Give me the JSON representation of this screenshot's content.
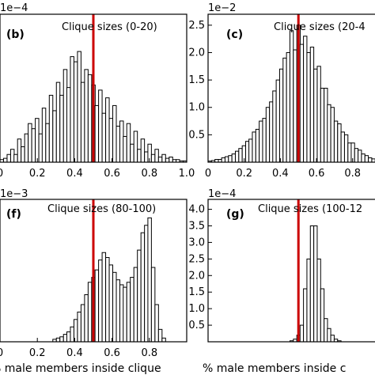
{
  "panels": [
    {
      "letter": "(b)",
      "label": "Clique sizes (0-20)",
      "exponent": "1e−4"
    },
    {
      "letter": "(c)",
      "label": "Clique sizes (20-4",
      "exponent": "1e−2"
    },
    {
      "letter": "(f)",
      "label": "Clique sizes (80-100)",
      "exponent": "1e−3"
    },
    {
      "letter": "(g)",
      "label": "Clique sizes (100-12",
      "exponent": "1e−4"
    }
  ],
  "xlabels": [
    "% male members inside clique",
    "% male members inside c"
  ],
  "colors": {
    "marker_line": "#cc0000",
    "bar_fill": "#ffffff",
    "bar_edge": "#000000"
  },
  "chart_data": [
    {
      "type": "bar",
      "panel": "b",
      "title": "Clique sizes (0-20)",
      "xlim": [
        0,
        1.0
      ],
      "xticks": [
        "0",
        "0.2",
        "0.4",
        "0.6",
        "0.8",
        "1.0"
      ],
      "yticks": [],
      "marker_x": 0.5,
      "bin_width": 0.0189,
      "x": [
        0.0,
        0.019,
        0.038,
        0.057,
        0.075,
        0.094,
        0.113,
        0.132,
        0.151,
        0.17,
        0.189,
        0.208,
        0.226,
        0.245,
        0.264,
        0.283,
        0.302,
        0.321,
        0.34,
        0.358,
        0.377,
        0.396,
        0.415,
        0.434,
        0.453,
        0.472,
        0.491,
        0.509,
        0.528,
        0.547,
        0.566,
        0.585,
        0.604,
        0.623,
        0.642,
        0.66,
        0.679,
        0.698,
        0.717,
        0.736,
        0.755,
        0.774,
        0.792,
        0.811,
        0.83,
        0.849,
        0.868,
        0.887,
        0.906,
        0.925,
        0.943,
        0.962,
        0.981
      ],
      "y": [
        0.02,
        0.03,
        0.06,
        0.1,
        0.06,
        0.18,
        0.12,
        0.22,
        0.3,
        0.26,
        0.34,
        0.22,
        0.42,
        0.3,
        0.52,
        0.4,
        0.62,
        0.52,
        0.72,
        0.58,
        0.82,
        0.78,
        0.86,
        0.62,
        0.72,
        0.68,
        0.6,
        0.44,
        0.56,
        0.38,
        0.5,
        0.34,
        0.44,
        0.28,
        0.32,
        0.2,
        0.3,
        0.14,
        0.24,
        0.1,
        0.18,
        0.08,
        0.14,
        0.06,
        0.1,
        0.04,
        0.06,
        0.03,
        0.04,
        0.02,
        0.02,
        0.01,
        0.01
      ]
    },
    {
      "type": "bar",
      "panel": "c",
      "title": "Clique sizes (20-4",
      "xlim": [
        0,
        0.95
      ],
      "xticks": [
        "0",
        "0.2",
        "0.4",
        "0.6",
        "0.8"
      ],
      "ylim": [
        0,
        2.7
      ],
      "yticks": [
        "0.5",
        "1.0",
        "1.5",
        "2.0",
        "2.5"
      ],
      "marker_x": 0.5,
      "bin_width": 0.0189,
      "x": [
        0.0,
        0.019,
        0.038,
        0.057,
        0.075,
        0.094,
        0.113,
        0.132,
        0.151,
        0.17,
        0.189,
        0.208,
        0.226,
        0.245,
        0.264,
        0.283,
        0.302,
        0.321,
        0.34,
        0.358,
        0.377,
        0.396,
        0.415,
        0.434,
        0.453,
        0.472,
        0.491,
        0.509,
        0.528,
        0.547,
        0.566,
        0.585,
        0.604,
        0.623,
        0.642,
        0.66,
        0.679,
        0.698,
        0.717,
        0.736,
        0.755,
        0.774,
        0.792,
        0.811,
        0.83,
        0.849,
        0.868,
        0.887,
        0.906,
        0.925
      ],
      "y": [
        0.02,
        0.03,
        0.05,
        0.05,
        0.08,
        0.1,
        0.12,
        0.15,
        0.2,
        0.25,
        0.3,
        0.38,
        0.42,
        0.55,
        0.6,
        0.75,
        0.8,
        1.0,
        1.1,
        1.3,
        1.5,
        1.7,
        1.9,
        2.0,
        2.4,
        2.05,
        2.5,
        2.15,
        2.3,
        2.0,
        2.1,
        1.7,
        1.75,
        1.35,
        1.35,
        1.05,
        1.0,
        0.75,
        0.7,
        0.55,
        0.5,
        0.35,
        0.35,
        0.25,
        0.22,
        0.15,
        0.12,
        0.08,
        0.06,
        0.04
      ]
    },
    {
      "type": "bar",
      "panel": "f",
      "title": "Clique sizes (80-100)",
      "xlim": [
        0,
        1.0
      ],
      "xticks": [
        "0",
        "0.2",
        "0.4",
        "0.6",
        "0.8"
      ],
      "yticks": [],
      "marker_x": 0.5,
      "bin_width": 0.0189,
      "x": [
        0.283,
        0.302,
        0.321,
        0.34,
        0.358,
        0.377,
        0.396,
        0.415,
        0.434,
        0.453,
        0.472,
        0.491,
        0.509,
        0.528,
        0.547,
        0.566,
        0.585,
        0.604,
        0.623,
        0.642,
        0.66,
        0.679,
        0.698,
        0.717,
        0.736,
        0.755,
        0.774,
        0.792,
        0.811,
        0.83,
        0.849,
        0.868
      ],
      "y": [
        0.02,
        0.03,
        0.04,
        0.06,
        0.08,
        0.12,
        0.18,
        0.24,
        0.3,
        0.38,
        0.48,
        0.52,
        0.58,
        0.66,
        0.72,
        0.68,
        0.62,
        0.56,
        0.5,
        0.46,
        0.44,
        0.48,
        0.52,
        0.6,
        0.74,
        0.88,
        0.94,
        1.0,
        0.6,
        0.3,
        0.1,
        0.03
      ]
    },
    {
      "type": "bar",
      "panel": "g",
      "title": "Clique sizes (100-12",
      "xlim": [
        0,
        0.95
      ],
      "xticks": [],
      "ylim": [
        0,
        4.3
      ],
      "yticks": [
        "0.5",
        "1.0",
        "1.5",
        "2.0",
        "2.5",
        "3.0",
        "3.5",
        "4.0"
      ],
      "marker_x": 0.5,
      "bin_width": 0.0189,
      "x": [
        0.453,
        0.472,
        0.491,
        0.509,
        0.528,
        0.547,
        0.566,
        0.585,
        0.604,
        0.623,
        0.642,
        0.66,
        0.679,
        0.698,
        0.717
      ],
      "y": [
        0.03,
        0.08,
        0.2,
        0.5,
        1.6,
        2.5,
        3.5,
        3.5,
        2.5,
        1.6,
        0.7,
        0.4,
        0.2,
        0.08,
        0.03
      ]
    }
  ]
}
